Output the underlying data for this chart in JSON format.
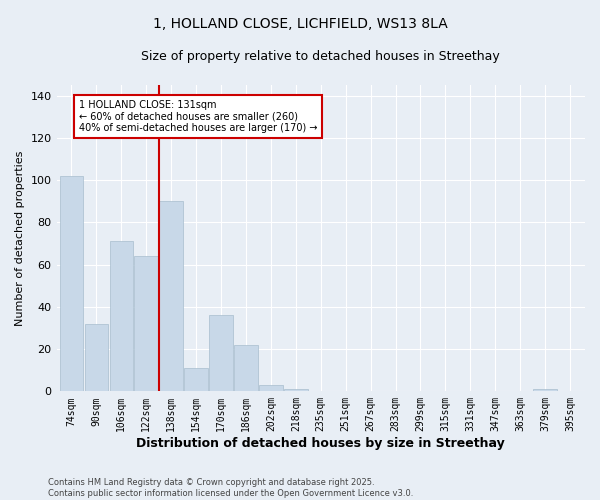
{
  "title": "1, HOLLAND CLOSE, LICHFIELD, WS13 8LA",
  "subtitle": "Size of property relative to detached houses in Streethay",
  "xlabel": "Distribution of detached houses by size in Streethay",
  "ylabel": "Number of detached properties",
  "footer_line1": "Contains HM Land Registry data © Crown copyright and database right 2025.",
  "footer_line2": "Contains public sector information licensed under the Open Government Licence v3.0.",
  "categories": [
    "74sqm",
    "90sqm",
    "106sqm",
    "122sqm",
    "138sqm",
    "154sqm",
    "170sqm",
    "186sqm",
    "202sqm",
    "218sqm",
    "235sqm",
    "251sqm",
    "267sqm",
    "283sqm",
    "299sqm",
    "315sqm",
    "331sqm",
    "347sqm",
    "363sqm",
    "379sqm",
    "395sqm"
  ],
  "values": [
    102,
    32,
    71,
    64,
    90,
    11,
    36,
    22,
    3,
    1,
    0,
    0,
    0,
    0,
    0,
    0,
    0,
    0,
    0,
    1,
    0
  ],
  "bar_color": "#c8d8e8",
  "bar_edge_color": "#a8bece",
  "vline_color": "#cc0000",
  "vline_pos": 3.5,
  "annotation_text": "1 HOLLAND CLOSE: 131sqm\n← 60% of detached houses are smaller (260)\n40% of semi-detached houses are larger (170) →",
  "annotation_box_color": "#ffffff",
  "annotation_box_edge": "#cc0000",
  "ylim": [
    0,
    145
  ],
  "yticks": [
    0,
    20,
    40,
    60,
    80,
    100,
    120,
    140
  ],
  "background_color": "#e8eef5",
  "plot_bg_color": "#e8eef5",
  "title_fontsize": 10,
  "subtitle_fontsize": 9,
  "ylabel_fontsize": 8,
  "xlabel_fontsize": 9,
  "tick_fontsize": 7,
  "footer_fontsize": 6,
  "annot_fontsize": 7
}
